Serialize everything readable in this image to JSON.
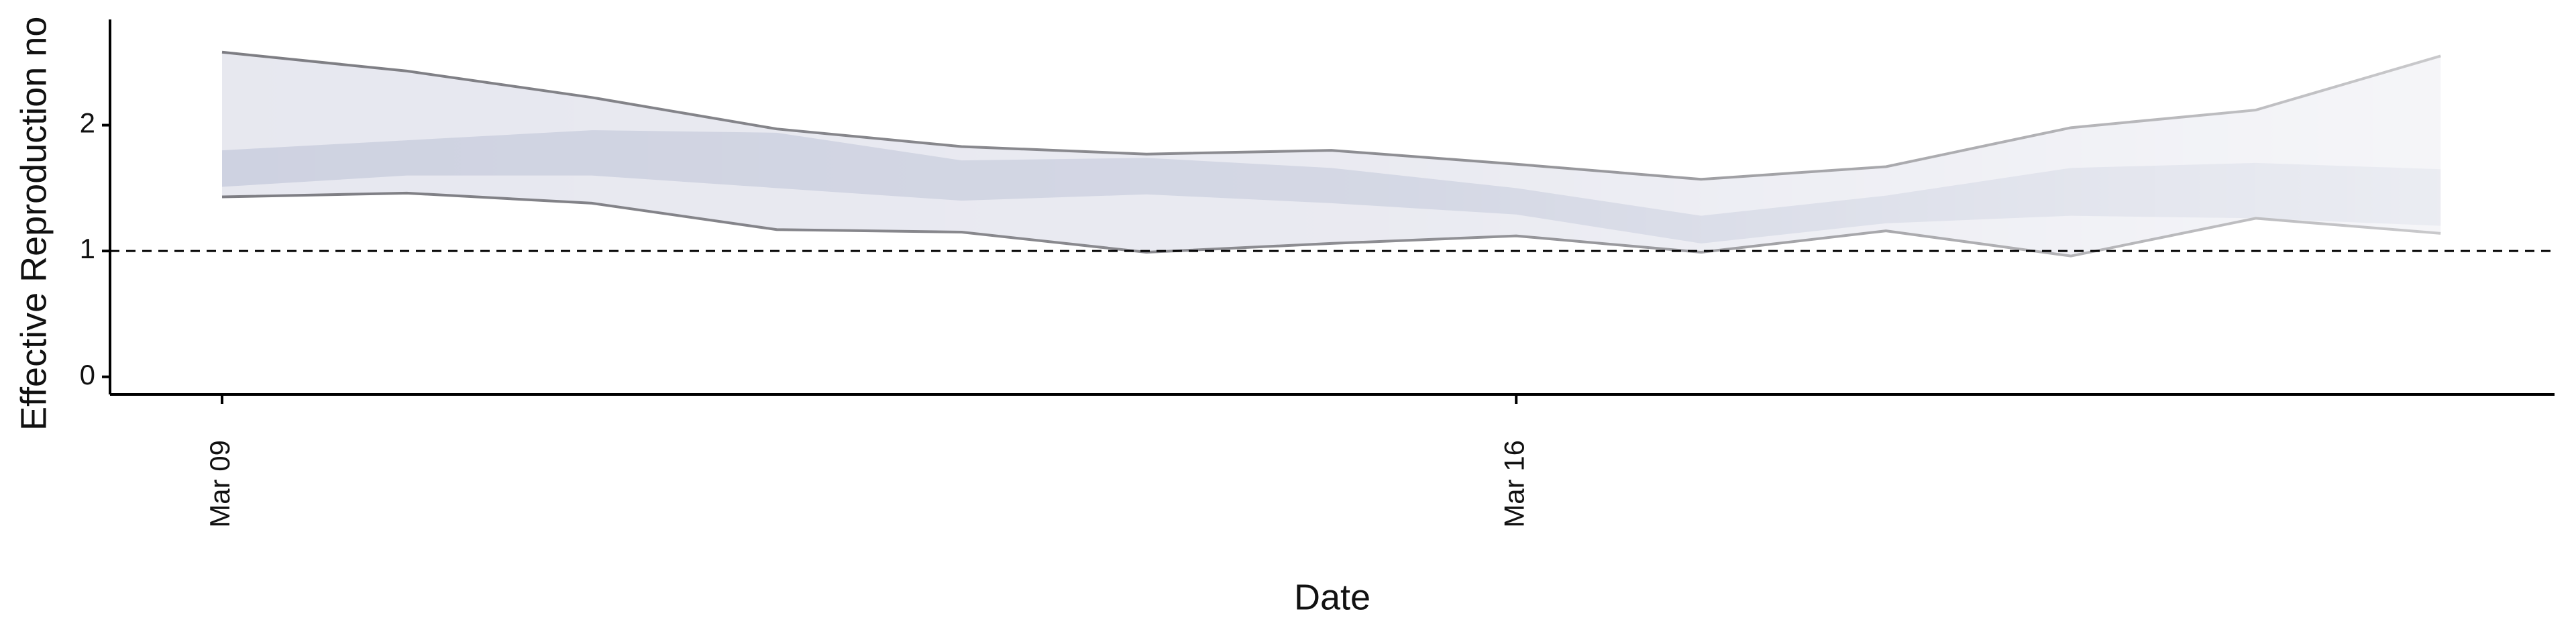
{
  "chart_data": {
    "type": "band",
    "x_label": "Date",
    "y_label": "Effective Reproduction no",
    "categories": [
      "Mar 09",
      null,
      null,
      null,
      null,
      null,
      null,
      "Mar 16",
      null,
      null,
      null,
      null,
      null
    ],
    "series": [
      {
        "color": "#7a7a80",
        "values": [
          2.58,
          2.43,
          2.22,
          1.97,
          1.83,
          1.77,
          1.8,
          1.69,
          1.57,
          1.67,
          1.98,
          2.12,
          2.55
        ]
      },
      {
        "color": "#7a7a80",
        "values": [
          1.43,
          1.46,
          1.38,
          1.17,
          1.15,
          0.99,
          1.06,
          1.12,
          0.99,
          1.16,
          0.96,
          1.26,
          1.14
        ]
      },
      {
        "color": "#cdd1e0",
        "values": [
          1.8,
          1.88,
          1.96,
          1.94,
          1.72,
          1.74,
          1.66,
          1.5,
          1.28,
          1.44,
          1.66,
          1.7,
          1.65
        ]
      },
      {
        "color": "#cdd1e0",
        "values": [
          1.51,
          1.6,
          1.6,
          1.5,
          1.4,
          1.45,
          1.38,
          1.29,
          1.06,
          1.22,
          1.28,
          1.26,
          1.2
        ]
      }
    ],
    "band_color": "#e6e7ef",
    "hline": 1,
    "ylim": [
      -0.14,
      2.84
    ],
    "yticks": [
      0,
      1,
      2
    ]
  }
}
